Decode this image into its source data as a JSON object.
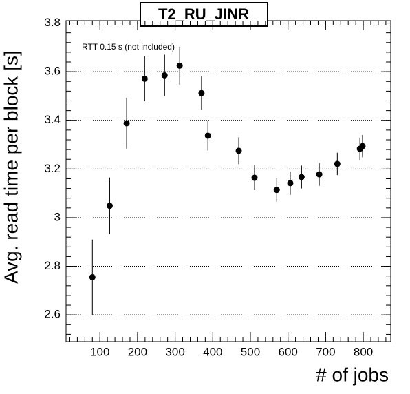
{
  "chart_data": {
    "type": "scatter",
    "title": "T2_RU_JINR",
    "annotation": "RTT 0.15 s (not included)",
    "x_label": "# of jobs",
    "y_label": "Avg. read time per block [s]",
    "series": [
      {
        "color": "#000000",
        "x": [
          80,
          126,
          171,
          219,
          272,
          312,
          370,
          387,
          469,
          511,
          570,
          606,
          636,
          683,
          731,
          791,
          798
        ],
        "values": [
          2.755,
          3.049,
          3.388,
          3.571,
          3.585,
          3.625,
          3.512,
          3.337,
          3.275,
          3.164,
          3.114,
          3.142,
          3.167,
          3.178,
          3.221,
          3.283,
          3.294
        ],
        "errors": [
          0.155,
          0.116,
          0.104,
          0.092,
          0.085,
          0.078,
          0.069,
          0.061,
          0.055,
          0.051,
          0.049,
          0.048,
          0.047,
          0.047,
          0.046,
          0.046,
          0.046
        ]
      }
    ],
    "xlim": [
      10,
      873
    ],
    "ylim": [
      2.49,
      3.81
    ],
    "xticks": [
      100,
      200,
      300,
      400,
      500,
      600,
      700,
      800
    ],
    "yticks": [
      2.6,
      2.8,
      3,
      3.2,
      3.4,
      3.6,
      3.8
    ],
    "grid": true
  }
}
